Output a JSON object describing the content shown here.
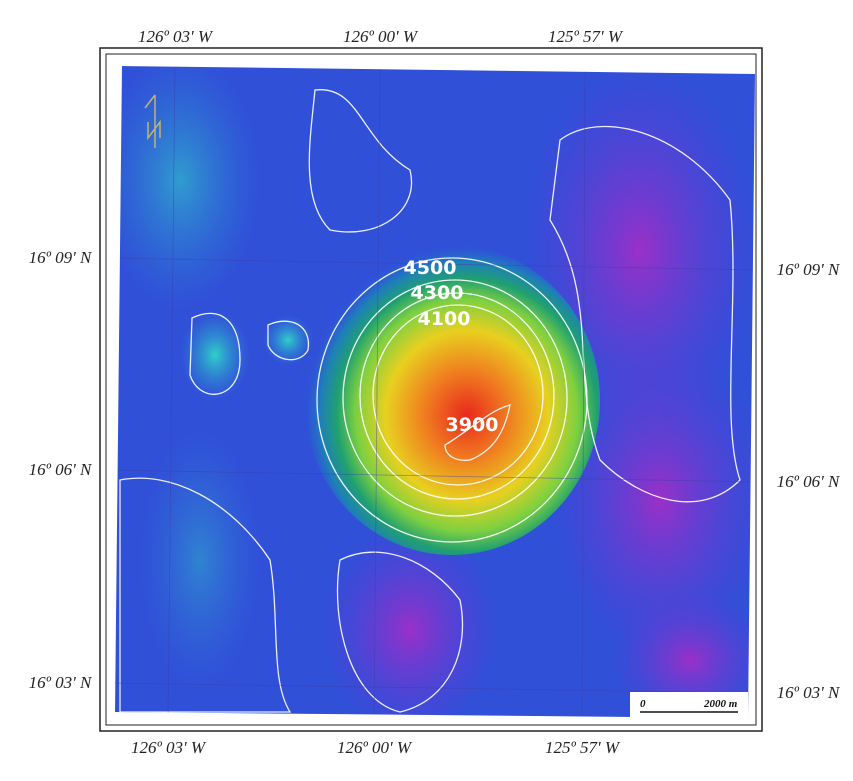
{
  "map": {
    "top_labels": [
      "126º 03' W",
      "126º 00' W",
      "125º 57' W"
    ],
    "bottom_labels": [
      "126º 03' W",
      "126º 00' W",
      "125º 57' W"
    ],
    "left_labels": [
      "16º 09' N",
      "16º 06' N",
      "16º 03' N"
    ],
    "right_labels": [
      "16º 09' N",
      "16º 06' N",
      "16º 03' N"
    ],
    "contour_labels": [
      "4500",
      "4300",
      "4100",
      "3900"
    ],
    "scale_bar": {
      "start": "0",
      "end": "2000 m"
    }
  }
}
